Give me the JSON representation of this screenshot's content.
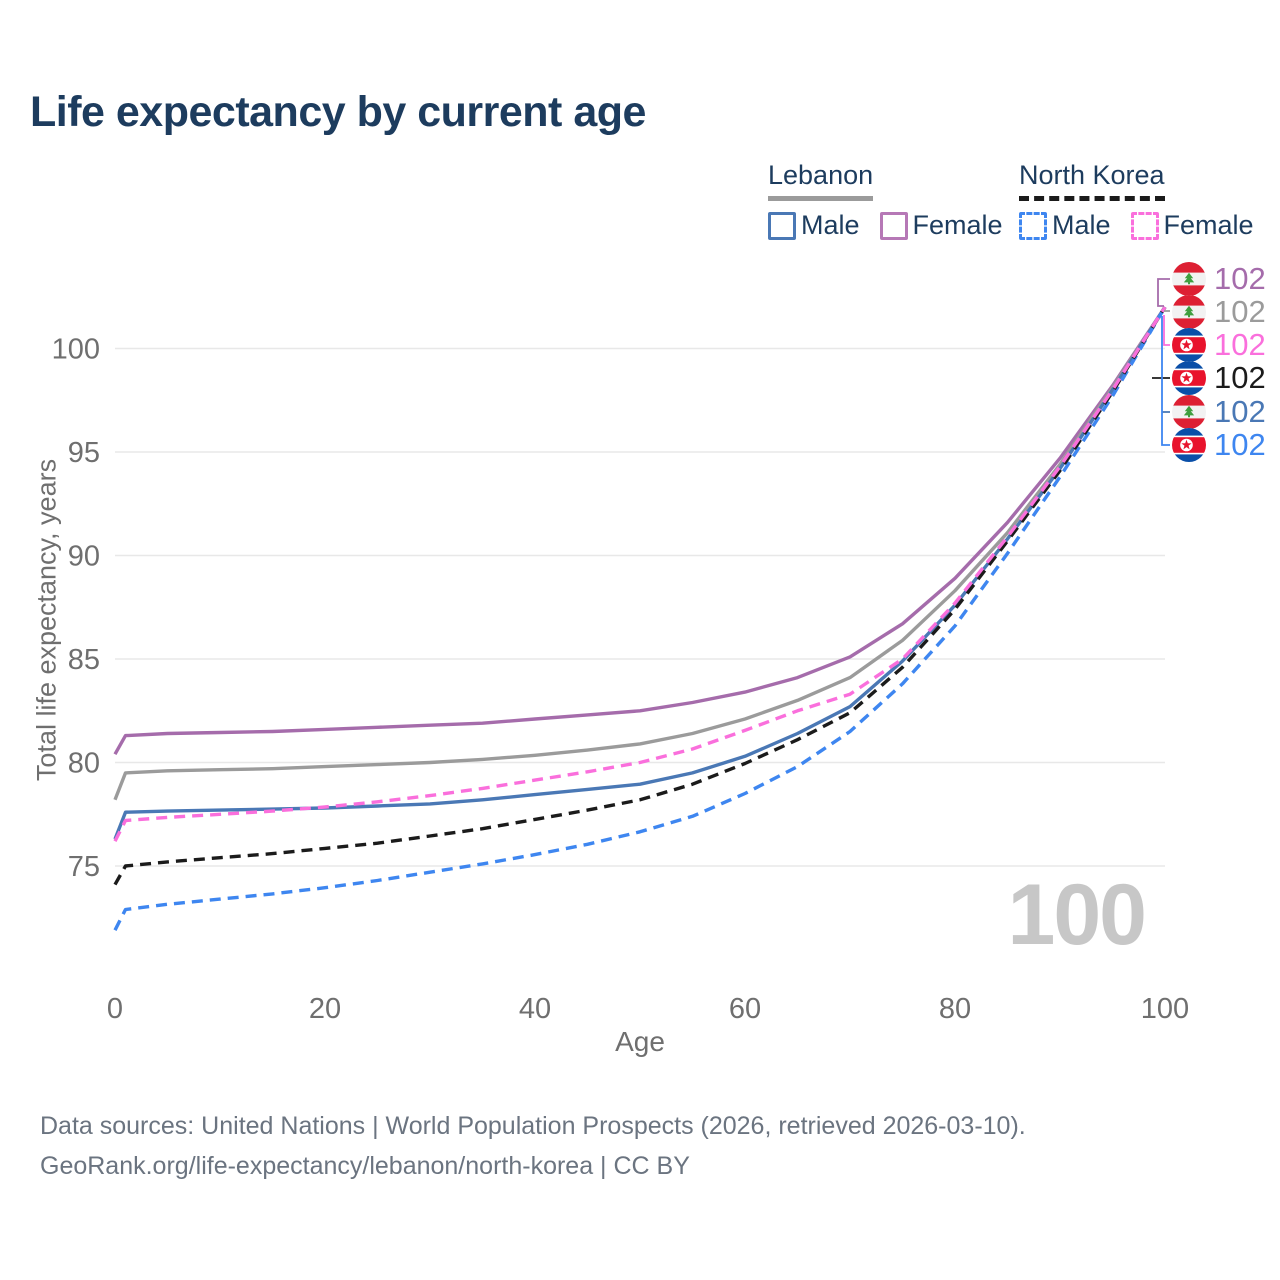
{
  "title": "Life expectancy by current age",
  "watermark": "100",
  "legend": {
    "groups": [
      {
        "country": "Lebanon",
        "line_style": "solid",
        "underline_color": "#9b9b9b",
        "items": [
          {
            "label": "Male",
            "color": "#4a78b5",
            "dashed": false
          },
          {
            "label": "Female",
            "color": "#b678b6",
            "dashed": false
          }
        ]
      },
      {
        "country": "North Korea",
        "line_style": "dashed",
        "underline_color": "#1b1b1b",
        "items": [
          {
            "label": "Male",
            "color": "#3e86f0",
            "dashed": true
          },
          {
            "label": "Female",
            "color": "#fa6fdc",
            "dashed": true
          }
        ]
      }
    ]
  },
  "chart_data": {
    "type": "line",
    "title": "Life expectancy by current age",
    "xlabel": "Age",
    "ylabel": "Total life expectancy, years",
    "xlim": [
      0,
      100
    ],
    "ylim": [
      71,
      103
    ],
    "x_ticks": [
      0,
      20,
      40,
      60,
      80,
      100
    ],
    "y_ticks": [
      75,
      80,
      85,
      90,
      95,
      100
    ],
    "grid": "horizontal-only",
    "legend_position": "top-right",
    "x": [
      0,
      1,
      5,
      10,
      15,
      20,
      25,
      30,
      35,
      40,
      45,
      50,
      55,
      60,
      65,
      70,
      75,
      80,
      85,
      90,
      95,
      100
    ],
    "series": [
      {
        "name": "Lebanon Female",
        "country": "Lebanon",
        "sex": "female",
        "color": "#a56cab",
        "dashed": false,
        "values": [
          80.4,
          81.3,
          81.4,
          81.45,
          81.5,
          81.6,
          81.7,
          81.8,
          81.9,
          82.1,
          82.3,
          82.5,
          82.9,
          83.4,
          84.1,
          85.1,
          86.7,
          88.9,
          91.6,
          94.7,
          98.2,
          102
        ]
      },
      {
        "name": "Lebanon",
        "country": "Lebanon",
        "sex": "both",
        "color": "#9b9b9b",
        "dashed": false,
        "values": [
          78.2,
          79.5,
          79.6,
          79.65,
          79.7,
          79.8,
          79.9,
          80.0,
          80.15,
          80.35,
          80.6,
          80.9,
          81.4,
          82.1,
          83.0,
          84.1,
          85.9,
          88.3,
          91.1,
          94.4,
          98.1,
          102
        ]
      },
      {
        "name": "Lebanon Male",
        "country": "Lebanon",
        "sex": "male",
        "color": "#4a78b5",
        "dashed": false,
        "values": [
          76.3,
          77.6,
          77.65,
          77.7,
          77.75,
          77.8,
          77.9,
          78.0,
          78.2,
          78.45,
          78.7,
          78.95,
          79.5,
          80.3,
          81.4,
          82.7,
          84.9,
          87.6,
          90.8,
          94.2,
          98.0,
          102
        ]
      },
      {
        "name": "North Korea Male",
        "country": "North Korea",
        "sex": "male",
        "color": "#3e86f0",
        "dashed": true,
        "values": [
          71.9,
          72.9,
          73.15,
          73.4,
          73.65,
          73.95,
          74.3,
          74.7,
          75.1,
          75.55,
          76.05,
          76.65,
          77.4,
          78.5,
          79.8,
          81.5,
          83.8,
          86.6,
          90.1,
          93.8,
          97.7,
          102
        ]
      },
      {
        "name": "North Korea",
        "country": "North Korea",
        "sex": "both",
        "color": "#1b1b1b",
        "dashed": true,
        "values": [
          74.1,
          75.0,
          75.2,
          75.4,
          75.6,
          75.85,
          76.1,
          76.45,
          76.8,
          77.25,
          77.7,
          78.2,
          78.95,
          79.95,
          81.1,
          82.4,
          84.6,
          87.4,
          90.7,
          94.1,
          97.9,
          102
        ]
      },
      {
        "name": "North Korea Female",
        "country": "North Korea",
        "sex": "female",
        "color": "#fa6fdc",
        "dashed": true,
        "values": [
          76.2,
          77.2,
          77.35,
          77.5,
          77.65,
          77.85,
          78.1,
          78.4,
          78.75,
          79.15,
          79.55,
          80.0,
          80.65,
          81.55,
          82.5,
          83.3,
          85.0,
          87.7,
          90.9,
          94.3,
          98.0,
          102
        ]
      }
    ]
  },
  "end_labels": [
    {
      "value": "102",
      "series": "Lebanon Female",
      "flag": "lebanon",
      "color": "#a56cab"
    },
    {
      "value": "102",
      "series": "Lebanon",
      "flag": "lebanon",
      "color": "#9b9b9b"
    },
    {
      "value": "102",
      "series": "North Korea Female",
      "flag": "north-korea",
      "color": "#fa6fdc"
    },
    {
      "value": "102",
      "series": "North Korea",
      "flag": "north-korea",
      "color": "#1b1b1b"
    },
    {
      "value": "102",
      "series": "Lebanon Male",
      "flag": "lebanon",
      "color": "#4a78b5"
    },
    {
      "value": "102",
      "series": "North Korea Male",
      "flag": "north-korea",
      "color": "#3e86f0"
    }
  ],
  "footer": {
    "line1": "Data sources: United Nations | World Population Prospects (2026, retrieved 2026-03-10).",
    "line2": "GeoRank.org/life-expectancy/lebanon/north-korea | CC BY"
  }
}
